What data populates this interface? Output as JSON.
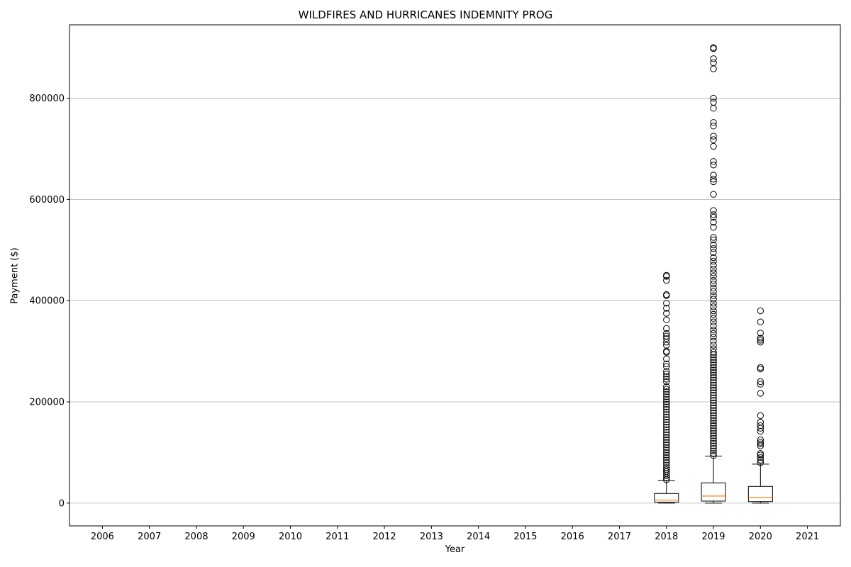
{
  "chart_data": {
    "type": "box",
    "title": "WILDFIRES AND HURRICANES INDEMNITY PROG",
    "xlabel": "Year",
    "ylabel": "Payment ($)",
    "categories": [
      "2006",
      "2007",
      "2008",
      "2009",
      "2010",
      "2011",
      "2012",
      "2013",
      "2014",
      "2015",
      "2016",
      "2017",
      "2018",
      "2019",
      "2020",
      "2021"
    ],
    "ylim": [
      -45000,
      945000
    ],
    "yticks": [
      0,
      200000,
      400000,
      600000,
      800000
    ],
    "ytick_labels": [
      "0",
      "200000",
      "400000",
      "600000",
      "800000"
    ],
    "grid": "y-major",
    "boxes": [
      {
        "category": "2018",
        "whisker_low": 0,
        "q1": 2000,
        "median": 6000,
        "q3": 19000,
        "whisker_high": 45000,
        "outliers": [
          46000,
          50000,
          54000,
          58000,
          62000,
          66000,
          70000,
          75000,
          80000,
          85000,
          90000,
          95000,
          100000,
          105000,
          110000,
          115000,
          120000,
          125000,
          130000,
          135000,
          140000,
          145000,
          150000,
          155000,
          160000,
          165000,
          170000,
          175000,
          180000,
          185000,
          190000,
          195000,
          200000,
          205000,
          210000,
          215000,
          220000,
          225000,
          230000,
          240000,
          245000,
          250000,
          255000,
          260000,
          270000,
          275000,
          285000,
          298000,
          300000,
          312000,
          318000,
          325000,
          330000,
          335000,
          345000,
          362000,
          375000,
          385000,
          395000,
          410000,
          412000,
          440000,
          448000,
          450000
        ]
      },
      {
        "category": "2019",
        "whisker_low": 0,
        "q1": 4000,
        "median": 14000,
        "q3": 40000,
        "whisker_high": 93000,
        "outliers": [
          94000,
          98000,
          103000,
          108000,
          113000,
          118000,
          123000,
          128000,
          133000,
          138000,
          143000,
          148000,
          153000,
          158000,
          163000,
          168000,
          173000,
          178000,
          183000,
          188000,
          193000,
          198000,
          203000,
          208000,
          213000,
          218000,
          223000,
          228000,
          233000,
          238000,
          243000,
          248000,
          253000,
          258000,
          263000,
          268000,
          273000,
          278000,
          283000,
          288000,
          293000,
          298000,
          305000,
          312000,
          320000,
          328000,
          335000,
          342000,
          350000,
          358000,
          365000,
          373000,
          380000,
          388000,
          395000,
          403000,
          410000,
          418000,
          425000,
          433000,
          440000,
          448000,
          455000,
          462000,
          470000,
          478000,
          485000,
          495000,
          503000,
          510000,
          520000,
          525000,
          545000,
          555000,
          565000,
          570000,
          578000,
          610000,
          635000,
          640000,
          648000,
          668000,
          675000,
          705000,
          718000,
          725000,
          745000,
          752000,
          780000,
          792000,
          800000,
          858000,
          870000,
          878000,
          898000,
          900000
        ]
      },
      {
        "category": "2020",
        "whisker_low": 0,
        "q1": 3000,
        "median": 11000,
        "q3": 33000,
        "whisker_high": 77000,
        "outliers": [
          80000,
          85000,
          90000,
          95000,
          98000,
          113000,
          117000,
          120000,
          125000,
          142000,
          148000,
          153000,
          160000,
          173000,
          217000,
          235000,
          240000,
          265000,
          268000,
          318000,
          322000,
          326000,
          336000,
          358000,
          380000
        ]
      }
    ]
  }
}
